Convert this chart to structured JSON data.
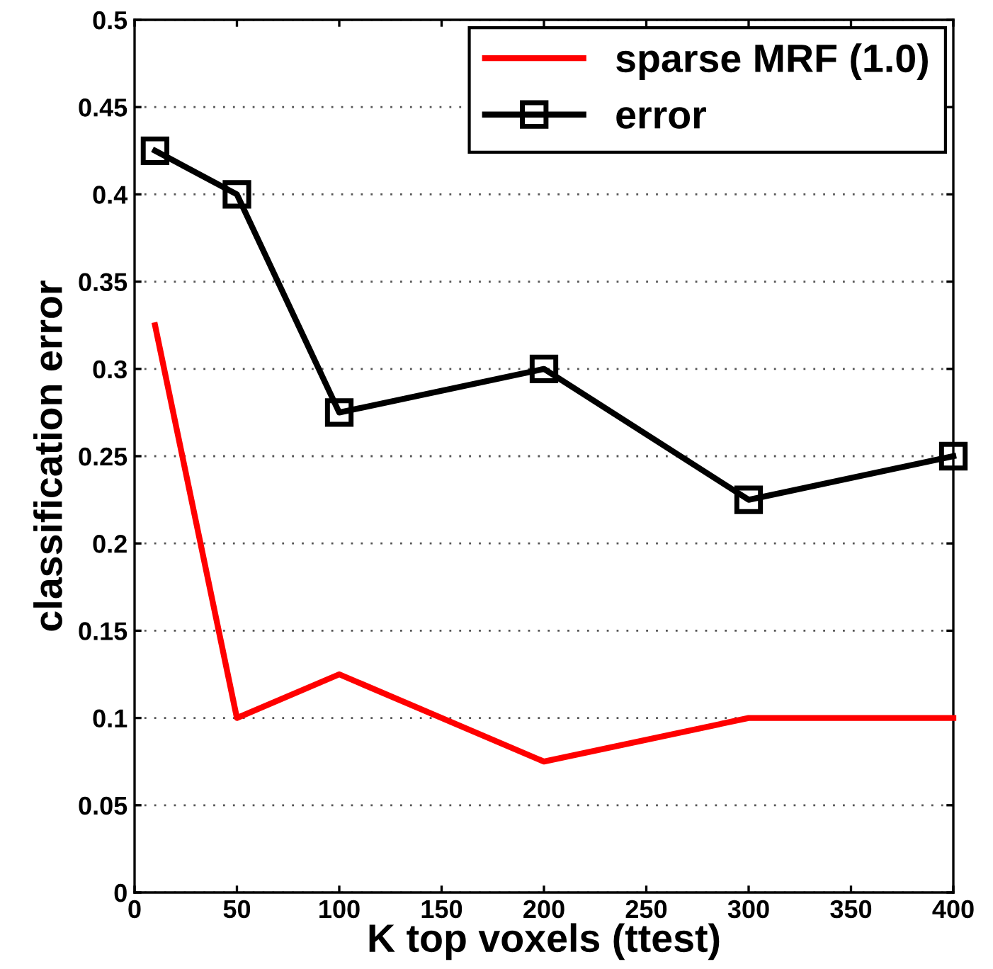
{
  "chart_data": {
    "type": "line",
    "xlabel": "K top voxels (ttest)",
    "ylabel": "classification error",
    "x": [
      10,
      50,
      100,
      200,
      300,
      400
    ],
    "series": [
      {
        "name": "sparse MRF (1.0)",
        "color": "#ff0000",
        "values": [
          0.325,
          0.1,
          0.125,
          0.075,
          0.1,
          0.1
        ],
        "marker": "none"
      },
      {
        "name": "error",
        "color": "#000000",
        "values": [
          0.425,
          0.4,
          0.275,
          0.3,
          0.225,
          0.25
        ],
        "marker": "square"
      }
    ],
    "xlim": [
      0,
      400
    ],
    "xticks": [
      0,
      50,
      100,
      150,
      200,
      250,
      300,
      350,
      400
    ],
    "ylim": [
      0,
      0.5
    ],
    "yticks": [
      0,
      0.05,
      0.1,
      0.15,
      0.2,
      0.25,
      0.3,
      0.35,
      0.4,
      0.45,
      0.5
    ],
    "grid": "y",
    "legend": "top right",
    "line_style": "solid"
  }
}
